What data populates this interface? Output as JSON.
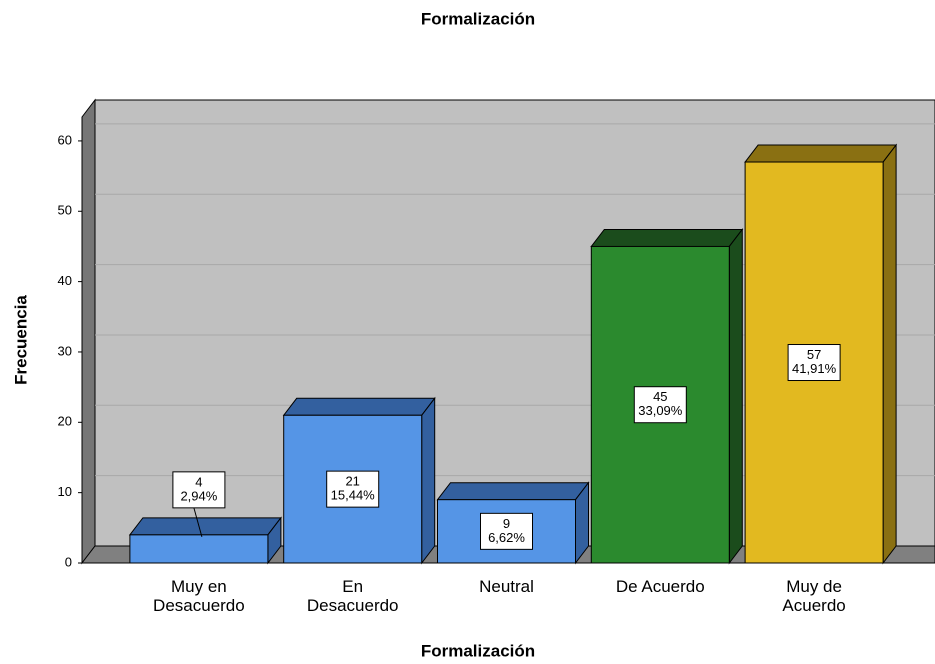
{
  "chart_data": {
    "type": "bar3d",
    "title": "Formalización",
    "x_label": "Formalización",
    "y_label": "Frecuencia",
    "categories": [
      "Muy en Desacuerdo",
      "En Desacuerdo",
      "Neutral",
      "De Acuerdo",
      "Muy de Acuerdo"
    ],
    "values": [
      4,
      21,
      9,
      45,
      57
    ],
    "percentages": [
      2.94,
      15.44,
      6.62,
      33.09,
      41.91
    ],
    "percentage_labels": [
      "2,94%",
      "15,44%",
      "6,62%",
      "33,09%",
      "41,91%"
    ],
    "colors": [
      "#5595e6",
      "#5595e6",
      "#5595e6",
      "#2b8a2e",
      "#e2b920"
    ],
    "side_colors": [
      "#33609f",
      "#33609f",
      "#33609f",
      "#1b4c1c",
      "#8a7012"
    ],
    "ylim": [
      0,
      63.4
    ],
    "yticks": [
      0,
      10,
      20,
      30,
      40,
      50,
      60
    ],
    "grid": true
  }
}
